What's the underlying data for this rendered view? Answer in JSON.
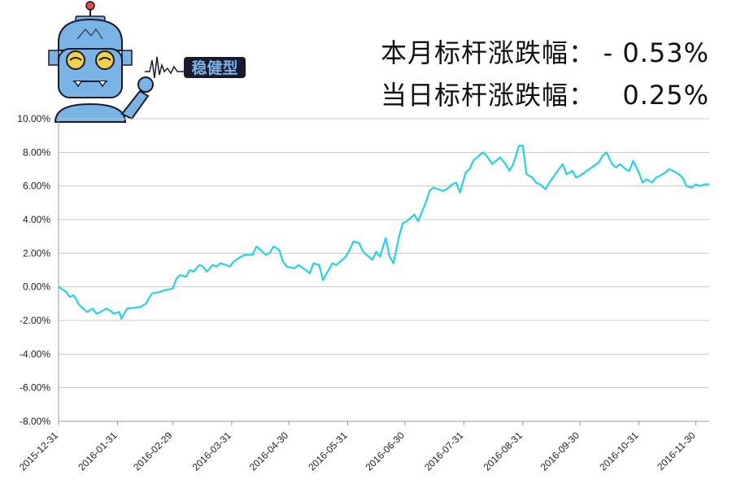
{
  "header": {
    "brand_text": "稳健型",
    "month_label": "本月标杆涨跌幅：",
    "month_value": "- 0.53%",
    "day_label": "当日标杆涨跌幅：",
    "day_value": "0.25%"
  },
  "colors": {
    "line": "#22d3e6",
    "grid": "#c8c8c8",
    "robot_body": "#7ab4e6",
    "robot_outline": "#1a1a2e"
  },
  "chart_data": {
    "type": "line",
    "title": "",
    "xlabel": "",
    "ylabel": "",
    "ylim": [
      -8,
      10
    ],
    "y_ticks": [
      10,
      8,
      6,
      4,
      2,
      0,
      -2,
      -4,
      -6,
      -8
    ],
    "y_tick_labels": [
      "10.00%",
      "8.00%",
      "6.00%",
      "4.00%",
      "2.00%",
      "0.00%",
      "-2.00%",
      "-4.00%",
      "-6.00%",
      "-8.00%"
    ],
    "x_tick_labels": [
      "2015-12-31",
      "2016-01-31",
      "2016-02-29",
      "2016-03-31",
      "2016-04-30",
      "2016-05-31",
      "2016-06-30",
      "2016-07-31",
      "2016-08-31",
      "2016-09-30",
      "2016-10-31",
      "2016-11-30"
    ],
    "grid": true,
    "legend": "none",
    "series": [
      {
        "x": [
          "2015-12-31",
          "2016-01-04",
          "2016-01-06",
          "2016-01-08",
          "2016-01-11",
          "2016-01-13",
          "2016-01-15",
          "2016-01-18",
          "2016-01-20",
          "2016-01-22",
          "2016-01-25",
          "2016-01-27",
          "2016-01-29",
          "2016-02-01",
          "2016-02-02",
          "2016-02-05",
          "2016-02-12",
          "2016-02-15",
          "2016-02-18",
          "2016-02-22",
          "2016-02-25",
          "2016-02-29",
          "2016-03-02",
          "2016-03-04",
          "2016-03-07",
          "2016-03-09",
          "2016-03-11",
          "2016-03-14",
          "2016-03-16",
          "2016-03-18",
          "2016-03-21",
          "2016-03-23",
          "2016-03-25",
          "2016-03-28",
          "2016-03-30",
          "2016-04-01",
          "2016-04-05",
          "2016-04-07",
          "2016-04-11",
          "2016-04-13",
          "2016-04-15",
          "2016-04-18",
          "2016-04-20",
          "2016-04-22",
          "2016-04-25",
          "2016-04-27",
          "2016-04-29",
          "2016-05-03",
          "2016-05-05",
          "2016-05-09",
          "2016-05-11",
          "2016-05-13",
          "2016-05-16",
          "2016-05-18",
          "2016-05-20",
          "2016-05-23",
          "2016-05-25",
          "2016-05-27",
          "2016-05-30",
          "2016-06-01",
          "2016-06-03",
          "2016-06-06",
          "2016-06-08",
          "2016-06-13",
          "2016-06-15",
          "2016-06-17",
          "2016-06-20",
          "2016-06-22",
          "2016-06-24",
          "2016-06-27",
          "2016-06-29",
          "2016-07-01",
          "2016-07-05",
          "2016-07-07",
          "2016-07-11",
          "2016-07-13",
          "2016-07-15",
          "2016-07-18",
          "2016-07-20",
          "2016-07-22",
          "2016-07-25",
          "2016-07-27",
          "2016-07-29",
          "2016-08-01",
          "2016-08-03",
          "2016-08-05",
          "2016-08-08",
          "2016-08-10",
          "2016-08-12",
          "2016-08-15",
          "2016-08-17",
          "2016-08-19",
          "2016-08-22",
          "2016-08-24",
          "2016-08-26",
          "2016-08-29",
          "2016-08-31",
          "2016-09-02",
          "2016-09-05",
          "2016-09-07",
          "2016-09-09",
          "2016-09-12",
          "2016-09-14",
          "2016-09-19",
          "2016-09-21",
          "2016-09-23",
          "2016-09-26",
          "2016-09-28",
          "2016-09-30",
          "2016-10-10",
          "2016-10-12",
          "2016-10-14",
          "2016-10-17",
          "2016-10-19",
          "2016-10-21",
          "2016-10-24",
          "2016-10-26",
          "2016-10-28",
          "2016-10-31",
          "2016-11-02",
          "2016-11-04",
          "2016-11-07",
          "2016-11-09",
          "2016-11-11",
          "2016-11-14",
          "2016-11-16",
          "2016-11-18",
          "2016-11-21",
          "2016-11-23",
          "2016-11-25",
          "2016-11-28",
          "2016-11-30",
          "2016-12-02",
          "2016-12-05",
          "2016-12-07"
        ],
        "values": [
          0.0,
          -0.3,
          -0.6,
          -0.5,
          -1.1,
          -1.3,
          -1.5,
          -1.3,
          -1.6,
          -1.5,
          -1.3,
          -1.4,
          -1.6,
          -1.5,
          -1.9,
          -1.3,
          -1.2,
          -1.0,
          -0.4,
          -0.3,
          -0.2,
          -0.1,
          0.5,
          0.7,
          0.6,
          1.0,
          0.9,
          1.3,
          1.2,
          0.9,
          1.3,
          1.2,
          1.4,
          1.3,
          1.2,
          1.5,
          1.8,
          1.9,
          1.9,
          2.4,
          2.2,
          1.9,
          2.0,
          2.4,
          2.2,
          1.5,
          1.2,
          1.1,
          1.3,
          1.0,
          0.8,
          1.4,
          1.3,
          0.4,
          0.8,
          1.4,
          1.3,
          1.5,
          1.8,
          2.2,
          2.7,
          2.6,
          2.1,
          1.6,
          2.1,
          1.8,
          2.9,
          1.8,
          1.4,
          3.0,
          3.8,
          3.9,
          4.3,
          3.9,
          5.0,
          5.7,
          5.9,
          5.8,
          5.7,
          5.8,
          6.1,
          6.2,
          5.6,
          6.8,
          7.0,
          7.5,
          7.8,
          8.0,
          7.8,
          7.3,
          7.5,
          7.7,
          7.3,
          6.9,
          7.3,
          8.4,
          8.4,
          6.7,
          6.5,
          6.2,
          6.1,
          5.8,
          6.2,
          7.0,
          7.3,
          6.7,
          6.9,
          6.5,
          6.6,
          7.4,
          7.8,
          8.0,
          7.3,
          7.1,
          7.3,
          7.0,
          6.9,
          7.5,
          6.8,
          6.2,
          6.4,
          6.2,
          6.5,
          6.6,
          6.8,
          7.0,
          6.9,
          6.7,
          6.5,
          6.0,
          5.9,
          6.1,
          6.0,
          6.1,
          6.1
        ]
      }
    ]
  }
}
